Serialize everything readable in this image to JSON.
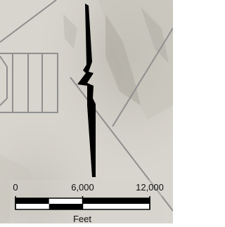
{
  "scale_bar": {
    "ticks": [
      0,
      {
        "value": 6000,
        "label": "6,000"
      },
      {
        "value": 12000,
        "label": "12,000"
      }
    ],
    "units": "Feet"
  }
}
